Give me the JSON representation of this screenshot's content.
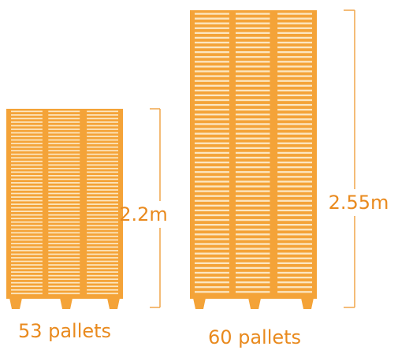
{
  "colors": {
    "pallet": "#F4A338",
    "slat_gap": "#FCE7C2",
    "text": "#E98A1E",
    "line": "#F0A64A"
  },
  "stacks": [
    {
      "height_label": "2.2m",
      "count_label": "53 pallets",
      "pallet_count": 53,
      "height_m": 2.2
    },
    {
      "height_label": "2.55m",
      "count_label": "60 pallets",
      "pallet_count": 60,
      "height_m": 2.55
    }
  ]
}
